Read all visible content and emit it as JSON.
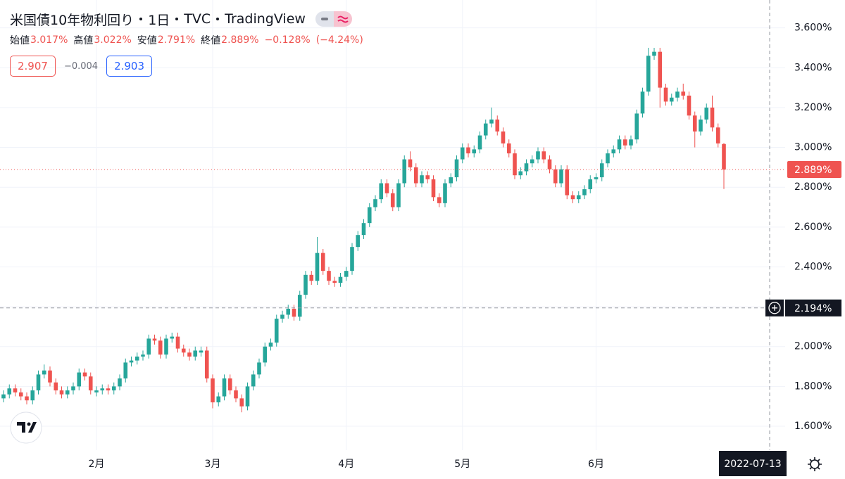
{
  "header": {
    "title": "米国債10年物利回り",
    "interval": "1日",
    "source": "TVC",
    "platform": "TradingView"
  },
  "legend": {
    "open_label": "始値",
    "open": "3.017%",
    "high_label": "高値",
    "high": "3.022%",
    "low_label": "安値",
    "low": "2.791%",
    "close_label": "終値",
    "close": "2.889%",
    "change": "−0.128%",
    "change_pct": "(−4.24%)"
  },
  "quote": {
    "sell": "2.907",
    "spread": "−0.004",
    "buy": "2.903"
  },
  "chart_data": {
    "type": "candlestick",
    "up_color": "#26a69a",
    "down_color": "#ef5350",
    "ylim": [
      1.48,
      3.74
    ],
    "yticks": [
      {
        "value": 1.6,
        "label": "1.600%"
      },
      {
        "value": 1.8,
        "label": "1.800%"
      },
      {
        "value": 2.0,
        "label": "2.000%"
      },
      {
        "value": 2.2,
        "label": "2.200%"
      },
      {
        "value": 2.4,
        "label": "2.400%"
      },
      {
        "value": 2.6,
        "label": "2.600%"
      },
      {
        "value": 2.8,
        "label": "2.800%"
      },
      {
        "value": 3.0,
        "label": "3.000%"
      },
      {
        "value": 3.2,
        "label": "3.200%"
      },
      {
        "value": 3.4,
        "label": "3.400%"
      },
      {
        "value": 3.6,
        "label": "3.600%"
      }
    ],
    "grid": true,
    "last_price": {
      "value": 2.889,
      "label": "2.889%"
    },
    "crosshair": {
      "price": {
        "value": 2.194,
        "label": "2.194%"
      },
      "date": "2022-07-13"
    },
    "categories": [
      null,
      null,
      null,
      null,
      null,
      null,
      null,
      null,
      null,
      null,
      null,
      null,
      null,
      null,
      null,
      null,
      "2月",
      null,
      null,
      null,
      null,
      null,
      null,
      null,
      null,
      null,
      null,
      null,
      null,
      null,
      null,
      null,
      null,
      null,
      null,
      null,
      "3月",
      null,
      null,
      null,
      null,
      null,
      null,
      null,
      null,
      null,
      null,
      null,
      null,
      null,
      null,
      null,
      null,
      null,
      null,
      null,
      null,
      null,
      null,
      "4月",
      null,
      null,
      null,
      null,
      null,
      null,
      null,
      null,
      null,
      null,
      null,
      null,
      null,
      null,
      null,
      null,
      null,
      null,
      null,
      "5月",
      null,
      null,
      null,
      null,
      null,
      null,
      null,
      null,
      null,
      null,
      null,
      null,
      null,
      null,
      null,
      null,
      null,
      null,
      null,
      null,
      null,
      null,
      "6月",
      null,
      null,
      null,
      null,
      null,
      null,
      null,
      null,
      null,
      null,
      null,
      null,
      null,
      null,
      null,
      null,
      null,
      null,
      null,
      null,
      null,
      null
    ],
    "open": [
      1.74,
      1.76,
      1.79,
      1.77,
      1.75,
      1.73,
      1.78,
      1.86,
      1.88,
      1.82,
      1.78,
      1.76,
      1.78,
      1.8,
      1.87,
      1.85,
      1.77,
      1.78,
      1.79,
      1.78,
      1.8,
      1.84,
      1.92,
      1.93,
      1.95,
      1.96,
      2.04,
      2.03,
      1.96,
      2.04,
      2.05,
      1.99,
      1.97,
      1.95,
      1.97,
      1.98,
      1.84,
      1.72,
      1.75,
      1.84,
      1.78,
      1.74,
      1.7,
      1.8,
      1.86,
      1.92,
      2.0,
      2.02,
      2.14,
      2.16,
      2.19,
      2.15,
      2.26,
      2.36,
      2.33,
      2.47,
      2.38,
      2.33,
      2.32,
      2.35,
      2.38,
      2.5,
      2.56,
      2.62,
      2.7,
      2.74,
      2.82,
      2.77,
      2.7,
      2.82,
      2.94,
      2.9,
      2.82,
      2.86,
      2.84,
      2.75,
      2.72,
      2.82,
      2.85,
      2.94,
      3.0,
      2.97,
      2.99,
      3.06,
      3.12,
      3.14,
      3.08,
      3.02,
      2.97,
      2.86,
      2.88,
      2.92,
      2.94,
      2.98,
      2.94,
      2.89,
      2.82,
      2.89,
      2.76,
      2.74,
      2.76,
      2.79,
      2.84,
      2.85,
      2.92,
      2.97,
      2.99,
      3.04,
      3.01,
      3.04,
      3.17,
      3.28,
      3.46,
      3.48,
      3.3,
      3.23,
      3.25,
      3.28,
      3.26,
      3.16,
      3.08,
      3.14,
      3.2,
      3.1,
      3.017
    ],
    "high": [
      1.78,
      1.81,
      1.81,
      1.79,
      1.77,
      1.8,
      1.88,
      1.91,
      1.9,
      1.84,
      1.8,
      1.8,
      1.82,
      1.89,
      1.89,
      1.87,
      1.8,
      1.81,
      1.81,
      1.82,
      1.86,
      1.94,
      1.95,
      1.97,
      1.98,
      2.06,
      2.06,
      2.05,
      2.06,
      2.07,
      2.07,
      2.01,
      1.99,
      2.0,
      2.0,
      2.0,
      1.86,
      1.77,
      1.86,
      1.86,
      1.8,
      1.76,
      1.82,
      1.88,
      1.94,
      2.02,
      2.04,
      2.16,
      2.18,
      2.21,
      2.21,
      2.28,
      2.38,
      2.38,
      2.55,
      2.49,
      2.4,
      2.35,
      2.37,
      2.4,
      2.52,
      2.58,
      2.64,
      2.72,
      2.76,
      2.84,
      2.84,
      2.79,
      2.84,
      2.96,
      2.98,
      2.92,
      2.88,
      2.88,
      2.86,
      2.77,
      2.84,
      2.87,
      2.96,
      3.02,
      3.02,
      3.01,
      3.08,
      3.14,
      3.2,
      3.16,
      3.1,
      3.04,
      2.99,
      2.9,
      2.94,
      2.96,
      3.0,
      3.0,
      2.96,
      2.91,
      2.91,
      2.91,
      2.78,
      2.78,
      2.81,
      2.86,
      2.87,
      2.94,
      2.99,
      3.01,
      3.06,
      3.06,
      3.06,
      3.19,
      3.3,
      3.5,
      3.5,
      3.5,
      3.32,
      3.27,
      3.3,
      3.32,
      3.28,
      3.18,
      3.16,
      3.22,
      3.26,
      3.12,
      3.022
    ],
    "low": [
      1.72,
      1.74,
      1.75,
      1.73,
      1.71,
      1.71,
      1.76,
      1.84,
      1.8,
      1.76,
      1.74,
      1.74,
      1.76,
      1.78,
      1.83,
      1.76,
      1.75,
      1.76,
      1.76,
      1.76,
      1.78,
      1.82,
      1.9,
      1.91,
      1.93,
      1.94,
      2.01,
      1.94,
      1.94,
      2.02,
      1.97,
      1.95,
      1.93,
      1.93,
      1.95,
      1.82,
      1.69,
      1.7,
      1.73,
      1.76,
      1.72,
      1.67,
      1.68,
      1.78,
      1.84,
      1.9,
      1.98,
      2.0,
      2.12,
      2.14,
      2.13,
      2.13,
      2.24,
      2.31,
      2.31,
      2.36,
      2.31,
      2.3,
      2.3,
      2.33,
      2.36,
      2.48,
      2.54,
      2.6,
      2.68,
      2.72,
      2.75,
      2.68,
      2.68,
      2.8,
      2.88,
      2.8,
      2.8,
      2.82,
      2.73,
      2.7,
      2.7,
      2.8,
      2.83,
      2.92,
      2.95,
      2.95,
      2.97,
      3.04,
      3.1,
      3.06,
      3.0,
      2.95,
      2.84,
      2.84,
      2.86,
      2.9,
      2.92,
      2.92,
      2.87,
      2.8,
      2.8,
      2.74,
      2.72,
      2.72,
      2.74,
      2.77,
      2.82,
      2.83,
      2.9,
      2.95,
      2.97,
      2.99,
      2.99,
      3.02,
      3.15,
      3.26,
      3.44,
      3.2,
      3.21,
      3.21,
      3.23,
      3.24,
      3.14,
      3.0,
      3.06,
      3.12,
      3.08,
      3.0,
      2.791
    ],
    "close": [
      1.76,
      1.79,
      1.77,
      1.75,
      1.73,
      1.78,
      1.86,
      1.88,
      1.82,
      1.78,
      1.76,
      1.78,
      1.8,
      1.87,
      1.85,
      1.78,
      1.78,
      1.79,
      1.78,
      1.8,
      1.84,
      1.92,
      1.93,
      1.95,
      1.96,
      2.04,
      2.03,
      1.96,
      2.04,
      2.05,
      1.99,
      1.97,
      1.95,
      1.98,
      1.98,
      1.84,
      1.72,
      1.75,
      1.84,
      1.78,
      1.74,
      1.7,
      1.8,
      1.86,
      1.92,
      2.0,
      2.02,
      2.14,
      2.16,
      2.19,
      2.15,
      2.26,
      2.36,
      2.33,
      2.47,
      2.38,
      2.33,
      2.32,
      2.35,
      2.38,
      2.5,
      2.56,
      2.62,
      2.7,
      2.74,
      2.82,
      2.77,
      2.7,
      2.82,
      2.94,
      2.9,
      2.82,
      2.86,
      2.84,
      2.75,
      2.72,
      2.82,
      2.85,
      2.94,
      3.0,
      2.97,
      2.99,
      3.06,
      3.12,
      3.14,
      3.08,
      3.02,
      2.97,
      2.86,
      2.88,
      2.92,
      2.94,
      2.98,
      2.94,
      2.89,
      2.82,
      2.89,
      2.76,
      2.74,
      2.76,
      2.79,
      2.84,
      2.85,
      2.92,
      2.97,
      2.99,
      3.04,
      3.01,
      3.04,
      3.17,
      3.28,
      3.46,
      3.48,
      3.3,
      3.23,
      3.25,
      3.28,
      3.26,
      3.16,
      3.08,
      3.14,
      3.2,
      3.1,
      3.02,
      2.889
    ]
  }
}
